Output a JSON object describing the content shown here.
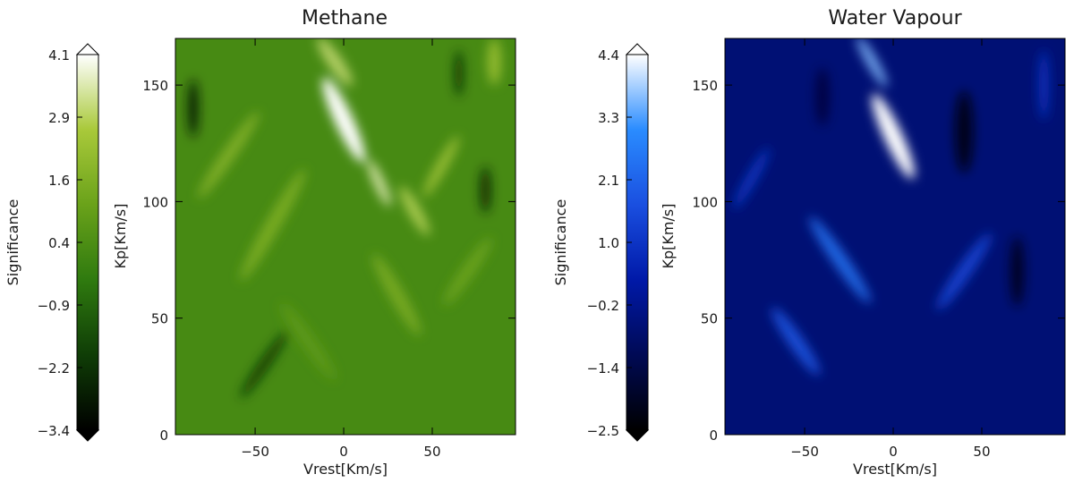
{
  "chart_data": [
    {
      "type": "heatmap",
      "title": "Methane",
      "xlabel": "Vrest[Km/s]",
      "ylabel": "Kp[Km/s]",
      "xlim": [
        -95,
        97
      ],
      "ylim": [
        0,
        170
      ],
      "x_ticks": [
        -50,
        0,
        50
      ],
      "y_ticks": [
        0,
        50,
        100,
        150
      ],
      "colorbar": {
        "label": "Significance",
        "range": [
          -3.4,
          4.1
        ],
        "ticks": [
          "4.1",
          "2.9",
          "1.6",
          "0.4",
          "-0.9",
          "-2.2",
          "-3.4"
        ],
        "colormap": [
          "#000000",
          "#0f3d06",
          "#2f7a0f",
          "#6aa21a",
          "#a9c93a",
          "#ffffff"
        ]
      },
      "peak": {
        "x": 0,
        "y": 135,
        "value": 4.1
      },
      "streaks": [
        {
          "x": -5,
          "y": 160,
          "w": 8,
          "h": 25,
          "angle": -35,
          "value": 3.0
        },
        {
          "x": 20,
          "y": 108,
          "w": 6,
          "h": 22,
          "angle": -25,
          "value": 3.5
        },
        {
          "x": 40,
          "y": 96,
          "w": 7,
          "h": 24,
          "angle": -30,
          "value": 2.8
        },
        {
          "x": 55,
          "y": 115,
          "w": 6,
          "h": 30,
          "angle": 30,
          "value": 2.4
        },
        {
          "x": -65,
          "y": 120,
          "w": 7,
          "h": 45,
          "angle": 35,
          "value": 1.8
        },
        {
          "x": -40,
          "y": 90,
          "w": 8,
          "h": 55,
          "angle": 30,
          "value": 1.6
        },
        {
          "x": 30,
          "y": 60,
          "w": 8,
          "h": 40,
          "angle": -30,
          "value": 1.5
        },
        {
          "x": 70,
          "y": 70,
          "w": 7,
          "h": 35,
          "angle": 35,
          "value": 1.2
        },
        {
          "x": 85,
          "y": 160,
          "w": 8,
          "h": 20,
          "angle": 0,
          "value": 2.2
        },
        {
          "x": -20,
          "y": 40,
          "w": 8,
          "h": 40,
          "angle": -35,
          "value": 0.8
        },
        {
          "x": -85,
          "y": 140,
          "w": 6,
          "h": 25,
          "angle": 0,
          "value": -2.8
        },
        {
          "x": -45,
          "y": 30,
          "w": 6,
          "h": 35,
          "angle": 35,
          "value": -2.0
        },
        {
          "x": 80,
          "y": 105,
          "w": 6,
          "h": 20,
          "angle": 0,
          "value": -2.5
        },
        {
          "x": 65,
          "y": 155,
          "w": 5,
          "h": 20,
          "angle": 0,
          "value": -2.2
        }
      ]
    },
    {
      "type": "heatmap",
      "title": "Water Vapour",
      "xlabel": "Vrest[Km/s]",
      "ylabel": "Kp[Km/s]",
      "xlim": [
        -95,
        97
      ],
      "ylim": [
        0,
        170
      ],
      "x_ticks": [
        -50,
        0,
        50
      ],
      "y_ticks": [
        0,
        50,
        100,
        150
      ],
      "colorbar": {
        "label": "Significance",
        "range": [
          -2.5,
          4.4
        ],
        "ticks": [
          "4.4",
          "3.3",
          "2.1",
          "1.0",
          "-0.2",
          "-1.4",
          "-2.5"
        ],
        "colormap": [
          "#000000",
          "#000a55",
          "#0019a8",
          "#1a4fe0",
          "#2a8cff",
          "#ffffff"
        ]
      },
      "peak": {
        "x": 0,
        "y": 128,
        "value": 4.4
      },
      "streaks": [
        {
          "x": -12,
          "y": 160,
          "w": 6,
          "h": 25,
          "angle": -30,
          "value": 3.6
        },
        {
          "x": -30,
          "y": 75,
          "w": 8,
          "h": 45,
          "angle": -35,
          "value": 2.4
        },
        {
          "x": -55,
          "y": 40,
          "w": 8,
          "h": 35,
          "angle": -35,
          "value": 1.8
        },
        {
          "x": 40,
          "y": 70,
          "w": 8,
          "h": 40,
          "angle": 35,
          "value": 1.4
        },
        {
          "x": -80,
          "y": 110,
          "w": 6,
          "h": 30,
          "angle": 30,
          "value": 1.0
        },
        {
          "x": 85,
          "y": 150,
          "w": 6,
          "h": 30,
          "angle": 0,
          "value": 0.9
        },
        {
          "x": 40,
          "y": 130,
          "w": 10,
          "h": 35,
          "angle": 0,
          "value": -2.3
        },
        {
          "x": 70,
          "y": 70,
          "w": 8,
          "h": 30,
          "angle": 0,
          "value": -2.0
        },
        {
          "x": -40,
          "y": 145,
          "w": 8,
          "h": 25,
          "angle": 0,
          "value": -1.5
        }
      ]
    }
  ]
}
